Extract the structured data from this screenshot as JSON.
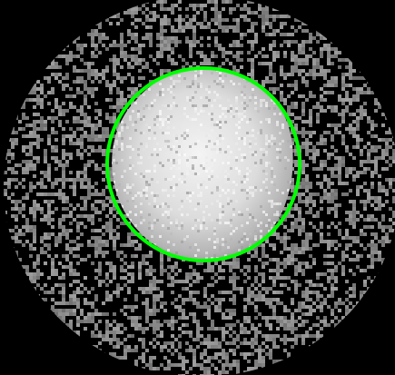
{
  "image": {
    "background_color": "#000000",
    "noise_color": "#8a8a8a",
    "blob_color_light": "#f2f2f2",
    "blob_color_mid": "#c8c8c8",
    "blob_color_dark": "#7a7a7a",
    "outline_color": "#00ff00",
    "outline_shape": "circle",
    "noise_density": 0.45
  }
}
